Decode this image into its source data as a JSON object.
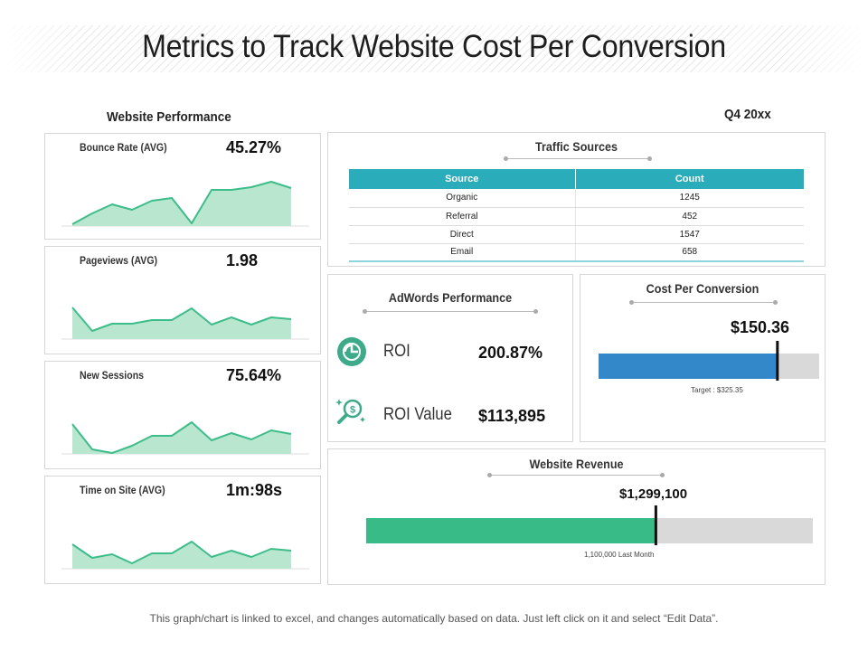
{
  "title": "Metrics to Track Website Cost Per Conversion",
  "period": "Q4 20xx",
  "website_performance": {
    "heading": "Website Performance",
    "metrics": [
      {
        "label": "Bounce Rate (AVG)",
        "value": "45.27%"
      },
      {
        "label": "Pageviews (AVG)",
        "value": "1.98"
      },
      {
        "label": "New Sessions",
        "value": "75.64%"
      },
      {
        "label": "Time on Site (AVG)",
        "value": "1m:98s"
      }
    ]
  },
  "traffic_sources": {
    "title": "Traffic Sources",
    "headers": [
      "Source",
      "Count"
    ],
    "rows": [
      {
        "source": "Organic",
        "count": "1245"
      },
      {
        "source": "Referral",
        "count": "452"
      },
      {
        "source": "Direct",
        "count": "1547"
      },
      {
        "source": "Email",
        "count": "658"
      }
    ]
  },
  "adwords": {
    "title": "AdWords Performance",
    "items": [
      {
        "label": "ROI",
        "value": "200.87%",
        "icon": "roi-icon"
      },
      {
        "label": "ROI Value",
        "value": "$113,895",
        "icon": "dollar-magnifier-icon"
      }
    ]
  },
  "cost_per_conversion": {
    "title": "Cost Per Conversion",
    "value_label": "$150.36",
    "target_label": "Target : $325.35"
  },
  "website_revenue": {
    "title": "Website Revenue",
    "value_label": "$1,299,100",
    "note": "1,100,000 Last Month"
  },
  "footnote": "This graph/chart is linked to excel, and changes automatically based on data. Just left click on it and select “Edit Data”.",
  "colors": {
    "area_fill": "#b8e6cf",
    "area_line": "#3dbd8a",
    "table_header": "#2aacbb",
    "cpc_bar": "#3388c9",
    "revenue_bar": "#38bb86",
    "bar_track": "#d9d9d9",
    "marker": "#111111",
    "icon": "#3dab8a"
  },
  "chart_data": [
    {
      "type": "area",
      "title": "Bounce Rate (AVG)",
      "values": [
        2,
        14,
        24,
        18,
        28,
        31,
        3,
        40,
        40,
        43,
        49,
        42
      ],
      "ylim": [
        0,
        60
      ]
    },
    {
      "type": "area",
      "title": "Pageviews (AVG)",
      "values": [
        35,
        9,
        17,
        17,
        21,
        21,
        34,
        16,
        24,
        16,
        24,
        22
      ],
      "ylim": [
        0,
        60
      ]
    },
    {
      "type": "area",
      "title": "New Sessions",
      "values": [
        33,
        5,
        1,
        9,
        20,
        20,
        35,
        15,
        23,
        16,
        26,
        22
      ],
      "ylim": [
        0,
        60
      ]
    },
    {
      "type": "area",
      "title": "Time on Site (AVG)",
      "values": [
        27,
        12,
        16,
        6,
        17,
        17,
        30,
        13,
        20,
        13,
        22,
        20
      ],
      "ylim": [
        0,
        60
      ]
    },
    {
      "type": "bar",
      "orientation": "horizontal",
      "title": "Cost Per Conversion",
      "value": 150.36,
      "max": 185
    },
    {
      "type": "bar",
      "orientation": "horizontal",
      "title": "Website Revenue",
      "value": 1299100,
      "max": 2000000
    }
  ]
}
